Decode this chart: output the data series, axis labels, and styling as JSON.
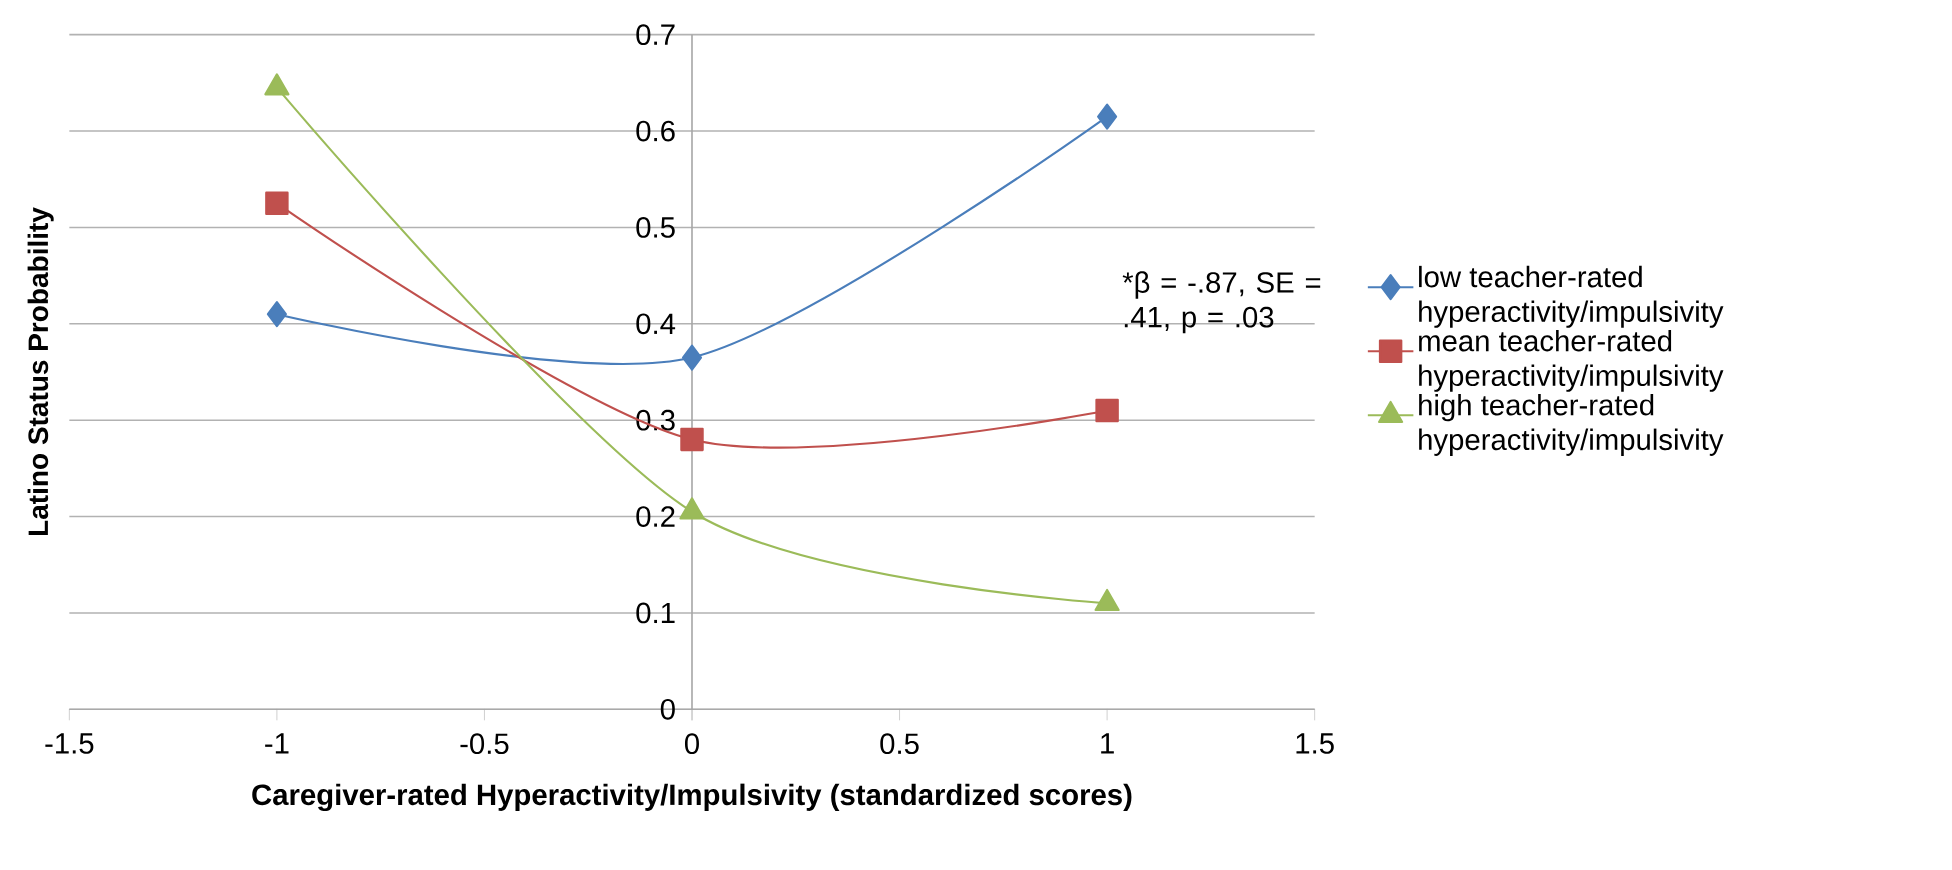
{
  "chart_data": {
    "type": "line",
    "xlabel": "Caregiver-rated Hyperactivity/Impulsivity (standardized scores)",
    "ylabel": "Latino Status Probability",
    "x": [
      -1,
      0,
      1
    ],
    "series": [
      {
        "name": "low teacher-rated hyperactivity/impulsivity",
        "color": "#4a7ebb",
        "marker": "diamond",
        "values": [
          0.41,
          0.365,
          0.615
        ]
      },
      {
        "name": "mean teacher-rated hyperactivity/impulsivity",
        "color": "#c0504d",
        "marker": "square",
        "values": [
          0.525,
          0.28,
          0.31
        ]
      },
      {
        "name": "high teacher-rated hyperactivity/impulsivity",
        "color": "#9bbb59",
        "marker": "triangle",
        "values": [
          0.645,
          0.205,
          0.11
        ]
      }
    ],
    "xlim": [
      -1.5,
      1.5
    ],
    "xticks": [
      -1.5,
      -1,
      -0.5,
      0,
      0.5,
      1,
      1.5
    ],
    "ylim": [
      0,
      0.7
    ],
    "yticks": [
      0,
      0.1,
      0.2,
      0.3,
      0.4,
      0.5,
      0.6,
      0.7
    ],
    "grid": "y",
    "legend": "right",
    "line_style": "solid",
    "annotations": [
      "*β = -.87, SE = .41, p = .03"
    ]
  }
}
